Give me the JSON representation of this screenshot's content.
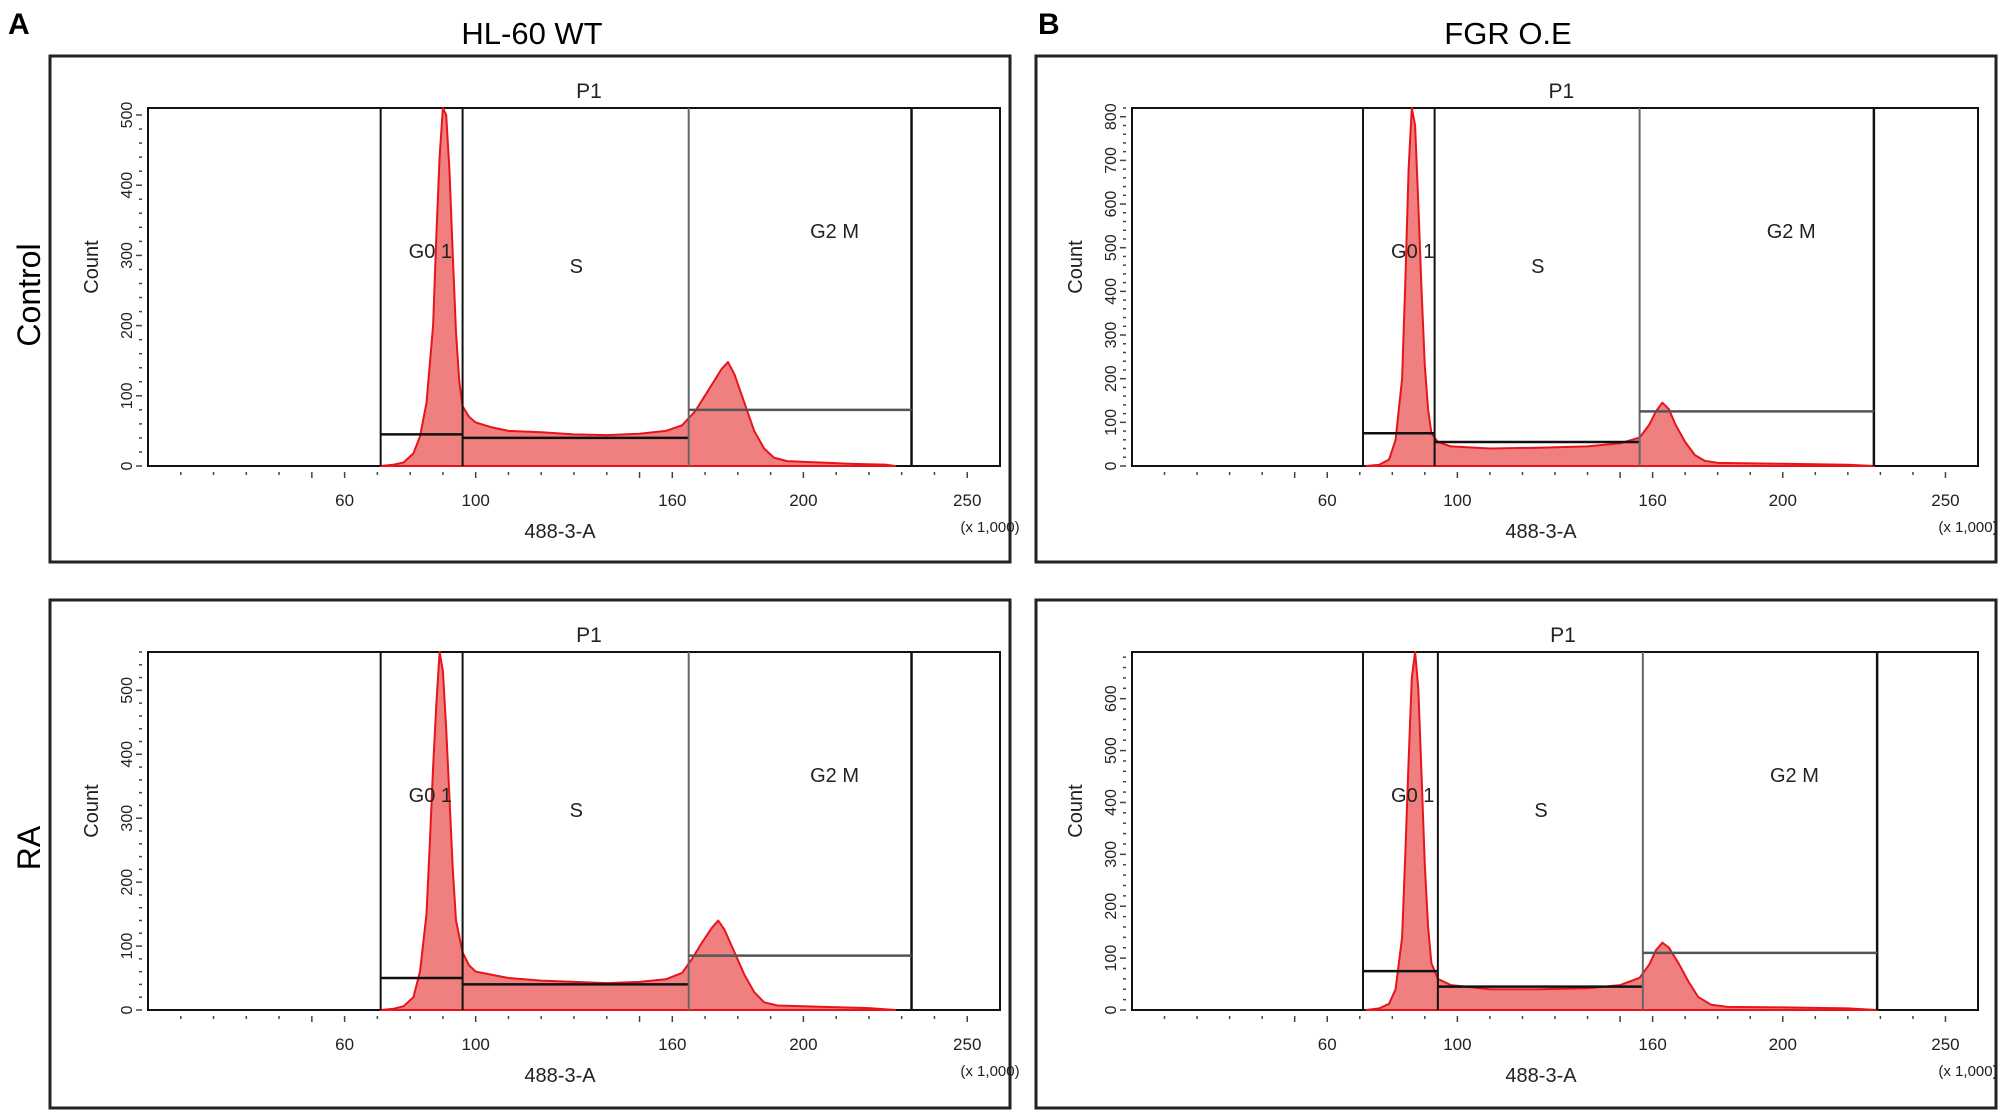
{
  "figure": {
    "panel_letters": [
      "A",
      "B"
    ],
    "column_titles": [
      "HL-60 WT",
      "FGR O.E"
    ],
    "row_labels": [
      "Control",
      "RA"
    ]
  },
  "colors": {
    "fill": "#f08080",
    "stroke": "#e8141c",
    "frame": "#000000",
    "text": "#222222"
  },
  "chart_data": [
    {
      "type": "area",
      "panel": "A",
      "column": "HL-60 WT",
      "row": "Control",
      "gate_title": "P1",
      "xlabel": "488-3-A",
      "x_multiplier_label": "(x 1,000)",
      "ylabel": "Count",
      "x_ticks": [
        60,
        100,
        160,
        200,
        250
      ],
      "y_ticks": [
        0,
        100,
        200,
        300,
        400,
        500
      ],
      "xlim": [
        0,
        260
      ],
      "ylim": [
        0,
        510
      ],
      "p1_gate": [
        71,
        233
      ],
      "gates": [
        {
          "label": "G0 1",
          "x": [
            71,
            96
          ],
          "level": 45
        },
        {
          "label": "S",
          "x": [
            96,
            165
          ],
          "level": 40
        },
        {
          "label": "G2 M",
          "x": [
            165,
            233
          ],
          "level": 80
        }
      ],
      "histogram": [
        [
          71,
          0
        ],
        [
          75,
          2
        ],
        [
          78,
          5
        ],
        [
          81,
          18
        ],
        [
          83,
          42
        ],
        [
          85,
          90
        ],
        [
          87,
          200
        ],
        [
          88,
          330
        ],
        [
          89,
          440
        ],
        [
          90,
          510
        ],
        [
          91,
          500
        ],
        [
          92,
          420
        ],
        [
          93,
          300
        ],
        [
          94,
          190
        ],
        [
          95,
          120
        ],
        [
          96,
          85
        ],
        [
          98,
          70
        ],
        [
          100,
          62
        ],
        [
          105,
          55
        ],
        [
          110,
          50
        ],
        [
          120,
          48
        ],
        [
          130,
          45
        ],
        [
          140,
          44
        ],
        [
          150,
          46
        ],
        [
          158,
          50
        ],
        [
          163,
          58
        ],
        [
          167,
          78
        ],
        [
          171,
          108
        ],
        [
          175,
          138
        ],
        [
          177,
          148
        ],
        [
          179,
          130
        ],
        [
          182,
          90
        ],
        [
          185,
          50
        ],
        [
          188,
          25
        ],
        [
          191,
          12
        ],
        [
          195,
          7
        ],
        [
          205,
          5
        ],
        [
          215,
          3
        ],
        [
          225,
          2
        ],
        [
          228,
          0
        ]
      ]
    },
    {
      "type": "area",
      "panel": "B",
      "column": "FGR O.E",
      "row": "Control",
      "gate_title": "P1",
      "xlabel": "488-3-A",
      "x_multiplier_label": "(x 1,000)",
      "ylabel": "Count",
      "x_ticks": [
        60,
        100,
        160,
        200,
        250
      ],
      "y_ticks": [
        0,
        100,
        200,
        300,
        400,
        500,
        600,
        700,
        800
      ],
      "xlim": [
        0,
        260
      ],
      "ylim": [
        0,
        820
      ],
      "p1_gate": [
        71,
        228
      ],
      "gates": [
        {
          "label": "G0 1",
          "x": [
            71,
            93
          ],
          "level": 75
        },
        {
          "label": "S",
          "x": [
            93,
            156
          ],
          "level": 55
        },
        {
          "label": "G2 M",
          "x": [
            156,
            228
          ],
          "level": 125
        }
      ],
      "histogram": [
        [
          72,
          0
        ],
        [
          76,
          3
        ],
        [
          79,
          15
        ],
        [
          81,
          60
        ],
        [
          83,
          200
        ],
        [
          84,
          420
        ],
        [
          85,
          680
        ],
        [
          86,
          820
        ],
        [
          87,
          780
        ],
        [
          88,
          600
        ],
        [
          89,
          400
        ],
        [
          90,
          230
        ],
        [
          91,
          130
        ],
        [
          92,
          75
        ],
        [
          94,
          55
        ],
        [
          98,
          45
        ],
        [
          110,
          40
        ],
        [
          125,
          42
        ],
        [
          140,
          45
        ],
        [
          150,
          52
        ],
        [
          156,
          65
        ],
        [
          159,
          95
        ],
        [
          161,
          125
        ],
        [
          163,
          145
        ],
        [
          165,
          130
        ],
        [
          167,
          95
        ],
        [
          170,
          55
        ],
        [
          173,
          25
        ],
        [
          176,
          12
        ],
        [
          180,
          7
        ],
        [
          200,
          5
        ],
        [
          220,
          3
        ],
        [
          228,
          0
        ]
      ]
    },
    {
      "type": "area",
      "panel": "A",
      "column": "HL-60 WT",
      "row": "RA",
      "gate_title": "P1",
      "xlabel": "488-3-A",
      "x_multiplier_label": "(x 1,000)",
      "ylabel": "Count",
      "x_ticks": [
        60,
        100,
        160,
        200,
        250
      ],
      "y_ticks": [
        0,
        100,
        200,
        300,
        400,
        500
      ],
      "xlim": [
        0,
        260
      ],
      "ylim": [
        0,
        560
      ],
      "p1_gate": [
        71,
        233
      ],
      "gates": [
        {
          "label": "G0 1",
          "x": [
            71,
            96
          ],
          "level": 50
        },
        {
          "label": "S",
          "x": [
            96,
            165
          ],
          "level": 40
        },
        {
          "label": "G2 M",
          "x": [
            165,
            233
          ],
          "level": 85
        }
      ],
      "histogram": [
        [
          71,
          0
        ],
        [
          75,
          2
        ],
        [
          78,
          6
        ],
        [
          81,
          20
        ],
        [
          83,
          60
        ],
        [
          85,
          150
        ],
        [
          86,
          260
        ],
        [
          87,
          380
        ],
        [
          88,
          480
        ],
        [
          89,
          560
        ],
        [
          90,
          530
        ],
        [
          91,
          440
        ],
        [
          92,
          330
        ],
        [
          93,
          220
        ],
        [
          94,
          140
        ],
        [
          96,
          90
        ],
        [
          98,
          70
        ],
        [
          100,
          60
        ],
        [
          110,
          50
        ],
        [
          120,
          46
        ],
        [
          130,
          44
        ],
        [
          140,
          42
        ],
        [
          150,
          44
        ],
        [
          158,
          48
        ],
        [
          163,
          58
        ],
        [
          166,
          80
        ],
        [
          169,
          105
        ],
        [
          172,
          128
        ],
        [
          174,
          140
        ],
        [
          176,
          125
        ],
        [
          179,
          90
        ],
        [
          182,
          55
        ],
        [
          185,
          28
        ],
        [
          188,
          12
        ],
        [
          192,
          7
        ],
        [
          205,
          5
        ],
        [
          220,
          3
        ],
        [
          228,
          0
        ]
      ]
    },
    {
      "type": "area",
      "panel": "B",
      "column": "FGR O.E",
      "row": "RA",
      "gate_title": "P1",
      "xlabel": "488-3-A",
      "x_multiplier_label": "(x 1,000)",
      "ylabel": "Count",
      "x_ticks": [
        60,
        100,
        160,
        200,
        250
      ],
      "y_ticks": [
        0,
        100,
        200,
        300,
        400,
        500,
        600
      ],
      "xlim": [
        0,
        260
      ],
      "ylim": [
        0,
        690
      ],
      "p1_gate": [
        71,
        229
      ],
      "gates": [
        {
          "label": "G0 1",
          "x": [
            71,
            94
          ],
          "level": 75
        },
        {
          "label": "S",
          "x": [
            94,
            157
          ],
          "level": 45
        },
        {
          "label": "G2 M",
          "x": [
            157,
            229
          ],
          "level": 110
        }
      ],
      "histogram": [
        [
          72,
          0
        ],
        [
          76,
          3
        ],
        [
          79,
          12
        ],
        [
          81,
          40
        ],
        [
          83,
          140
        ],
        [
          84,
          300
        ],
        [
          85,
          480
        ],
        [
          86,
          640
        ],
        [
          87,
          690
        ],
        [
          88,
          620
        ],
        [
          89,
          450
        ],
        [
          90,
          280
        ],
        [
          91,
          160
        ],
        [
          92,
          90
        ],
        [
          94,
          60
        ],
        [
          98,
          48
        ],
        [
          110,
          40
        ],
        [
          125,
          40
        ],
        [
          140,
          42
        ],
        [
          150,
          48
        ],
        [
          156,
          62
        ],
        [
          159,
          88
        ],
        [
          161,
          115
        ],
        [
          163,
          130
        ],
        [
          165,
          120
        ],
        [
          168,
          90
        ],
        [
          171,
          55
        ],
        [
          174,
          25
        ],
        [
          178,
          10
        ],
        [
          183,
          6
        ],
        [
          200,
          5
        ],
        [
          220,
          3
        ],
        [
          229,
          0
        ]
      ]
    }
  ]
}
